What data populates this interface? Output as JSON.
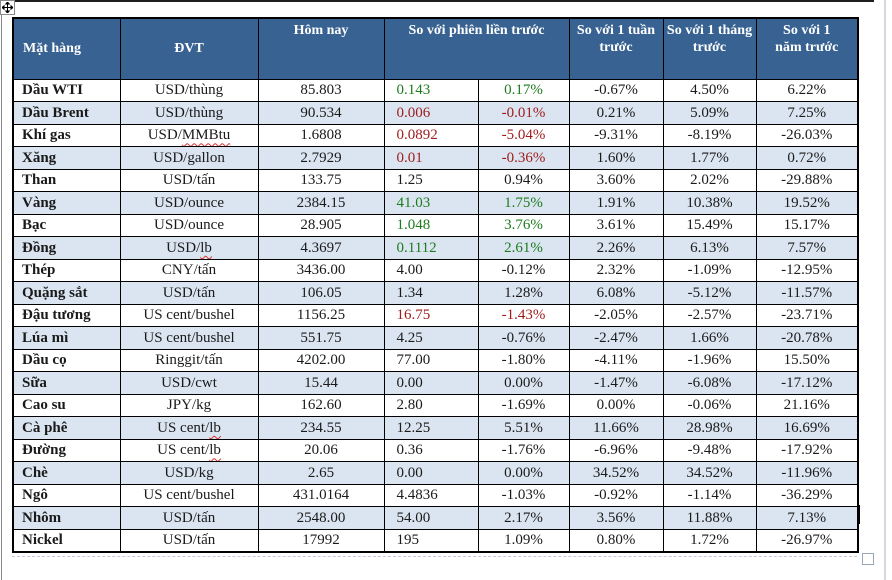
{
  "colors": {
    "header_bg": "#386291",
    "header_text": "#ffffff",
    "row_alt": "#dbe5f1",
    "positive_green": "#1e7b1e",
    "negative_red": "#9e1b1b",
    "border": "#000000"
  },
  "chrome": {
    "move_handle_icon": "table-move-handle-icon",
    "resize_handle_icon": "table-resize-handle-icon",
    "text_cursor": "text-cursor"
  },
  "table": {
    "headers": {
      "commodity": "Mặt hàng",
      "unit": "ĐVT",
      "today": "Hôm nay",
      "vs_prev_session": "So với phiên liền trước",
      "vs_week": "So với 1 tuần trước",
      "vs_month": "So với 1 tháng trước",
      "vs_year": "So với 1 năm trước"
    },
    "rows": [
      {
        "name": "Dầu WTI",
        "unit": "USD/thùng",
        "unit_misspelled": "",
        "today": "85.803",
        "change": "0.143",
        "change_pct": "0.17%",
        "change_color": "green",
        "week": "-0.67%",
        "month": "4.50%",
        "year": "6.22%"
      },
      {
        "name": "Dầu Brent",
        "unit": "USD/thùng",
        "unit_misspelled": "",
        "today": "90.534",
        "change": "0.006",
        "change_pct": "-0.01%",
        "change_color": "red",
        "week": "0.21%",
        "month": "5.09%",
        "year": "7.25%"
      },
      {
        "name": "Khí gas",
        "unit": "USD/",
        "unit_misspelled": "MMBtu",
        "today": "1.6808",
        "change": "0.0892",
        "change_pct": "-5.04%",
        "change_color": "red",
        "week": "-9.31%",
        "month": "-8.19%",
        "year": "-26.03%"
      },
      {
        "name": "Xăng",
        "unit": "USD/gallon",
        "unit_misspelled": "",
        "today": "2.7929",
        "change": "0.01",
        "change_pct": "-0.36%",
        "change_color": "red",
        "week": "1.60%",
        "month": "1.77%",
        "year": "0.72%"
      },
      {
        "name": "Than",
        "unit": "USD/tấn",
        "unit_misspelled": "",
        "today": "133.75",
        "change": "1.25",
        "change_pct": "0.94%",
        "change_color": "black",
        "week": "3.60%",
        "month": "2.02%",
        "year": "-29.88%"
      },
      {
        "name": "Vàng",
        "unit": "USD/ounce",
        "unit_misspelled": "",
        "today": "2384.15",
        "change": "41.03",
        "change_pct": "1.75%",
        "change_color": "green",
        "week": "1.91%",
        "month": "10.38%",
        "year": "19.52%"
      },
      {
        "name": "Bạc",
        "unit": "USD/ounce",
        "unit_misspelled": "",
        "today": "28.905",
        "change": "1.048",
        "change_pct": "3.76%",
        "change_color": "green",
        "week": "3.61%",
        "month": "15.49%",
        "year": "15.17%"
      },
      {
        "name": "Đồng",
        "unit": "USD/",
        "unit_misspelled": "lb",
        "today": "4.3697",
        "change": "0.1112",
        "change_pct": "2.61%",
        "change_color": "green",
        "week": "2.26%",
        "month": "6.13%",
        "year": "7.57%"
      },
      {
        "name": "Thép",
        "unit": "CNY/tấn",
        "unit_misspelled": "",
        "today": "3436.00",
        "change": "4.00",
        "change_pct": "-0.12%",
        "change_color": "black",
        "week": "2.32%",
        "month": "-1.09%",
        "year": "-12.95%"
      },
      {
        "name": "Quặng sắt",
        "unit": "USD/tấn",
        "unit_misspelled": "",
        "today": "106.05",
        "change": "1.34",
        "change_pct": "1.28%",
        "change_color": "black",
        "week": "6.08%",
        "month": "-5.12%",
        "year": "-11.57%"
      },
      {
        "name": "Đậu tương",
        "unit": "US cent/bushel",
        "unit_misspelled": "",
        "today": "1156.25",
        "change": "16.75",
        "change_pct": "-1.43%",
        "change_color": "red",
        "week": "-2.05%",
        "month": "-2.57%",
        "year": "-23.71%"
      },
      {
        "name": "Lúa mì",
        "unit": "US cent/bushel",
        "unit_misspelled": "",
        "today": "551.75",
        "change": "4.25",
        "change_pct": "-0.76%",
        "change_color": "black",
        "week": "-2.47%",
        "month": "1.66%",
        "year": "-20.78%"
      },
      {
        "name": "Dầu cọ",
        "unit": "Ringgit/tấn",
        "unit_misspelled": "",
        "today": "4202.00",
        "change": "77.00",
        "change_pct": "-1.80%",
        "change_color": "black",
        "week": "-4.11%",
        "month": "-1.96%",
        "year": "15.50%"
      },
      {
        "name": "Sữa",
        "unit": "USD/cwt",
        "unit_misspelled": "",
        "today": "15.44",
        "change": "0.00",
        "change_pct": "0.00%",
        "change_color": "black",
        "week": "-1.47%",
        "month": "-6.08%",
        "year": "-17.12%"
      },
      {
        "name": "Cao su",
        "unit": "JPY/kg",
        "unit_misspelled": "",
        "today": "162.60",
        "change": "2.80",
        "change_pct": "-1.69%",
        "change_color": "black",
        "week": "0.00%",
        "month": "-0.06%",
        "year": "21.16%"
      },
      {
        "name": "Cà phê",
        "unit": "US cent/",
        "unit_misspelled": "lb",
        "today": "234.55",
        "change": "12.25",
        "change_pct": "5.51%",
        "change_color": "black",
        "week": "11.66%",
        "month": "28.98%",
        "year": "16.69%"
      },
      {
        "name": "Đường",
        "unit": "US cent/",
        "unit_misspelled": "lb",
        "today": "20.06",
        "change": "0.36",
        "change_pct": "-1.76%",
        "change_color": "black",
        "week": "-6.96%",
        "month": "-9.48%",
        "year": "-17.92%"
      },
      {
        "name": "Chè",
        "unit": "USD/kg",
        "unit_misspelled": "",
        "today": "2.65",
        "change": "0.00",
        "change_pct": "0.00%",
        "change_color": "black",
        "week": "34.52%",
        "month": "34.52%",
        "year": "-11.96%"
      },
      {
        "name": "Ngô",
        "unit": "US cent/bushel",
        "unit_misspelled": "",
        "today": "431.0164",
        "change": "4.4836",
        "change_pct": "-1.03%",
        "change_color": "black",
        "week": "-0.92%",
        "month": "-1.14%",
        "year": "-36.29%"
      },
      {
        "name": "Nhôm",
        "unit": "USD/tấn",
        "unit_misspelled": "",
        "today": "2548.00",
        "change": "54.00",
        "change_pct": "2.17%",
        "change_color": "black",
        "week": "3.56%",
        "month": "11.88%",
        "year": "7.13%"
      },
      {
        "name": "Nickel",
        "unit": "USD/tấn",
        "unit_misspelled": "",
        "today": "17992",
        "change": "195",
        "change_pct": "1.09%",
        "change_color": "black",
        "week": "0.80%",
        "month": "1.72%",
        "year": "-26.97%"
      }
    ]
  }
}
